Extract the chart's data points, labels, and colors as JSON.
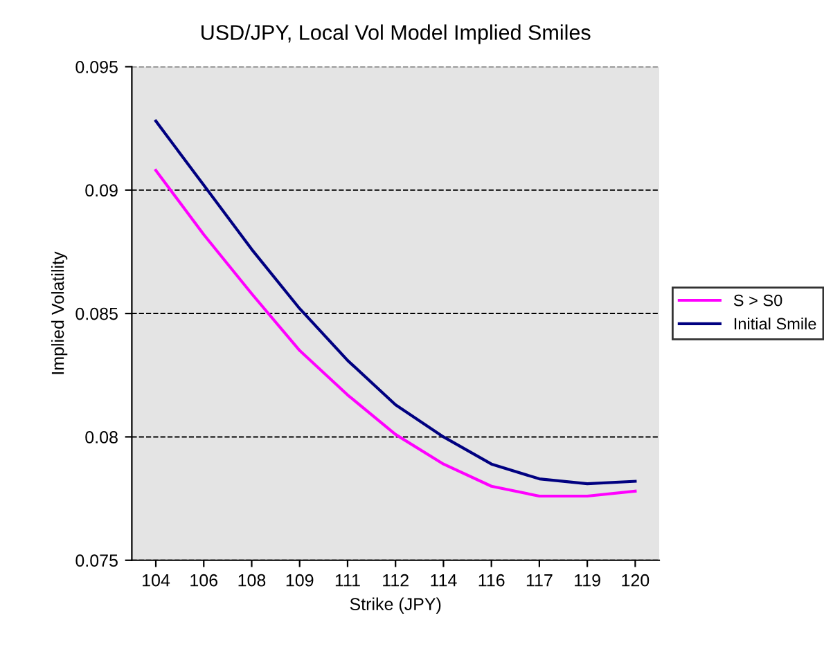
{
  "chart_data": {
    "type": "line",
    "title": "USD/JPY, Local Vol Model Implied Smiles",
    "xlabel": "Strike (JPY)",
    "ylabel": "Implied Volatility",
    "categories": [
      "104",
      "106",
      "108",
      "109",
      "111",
      "112",
      "114",
      "116",
      "117",
      "119",
      "120"
    ],
    "series": [
      {
        "name": "S > S0",
        "color": "#ff00ff",
        "values": [
          0.0908,
          0.0882,
          0.0858,
          0.0835,
          0.0817,
          0.0801,
          0.0789,
          0.078,
          0.0776,
          0.0776,
          0.0778
        ]
      },
      {
        "name": "Initial Smile",
        "color": "#000080",
        "values": [
          0.0928,
          0.0902,
          0.0876,
          0.0852,
          0.0831,
          0.0813,
          0.08,
          0.0789,
          0.0783,
          0.0781,
          0.0782
        ]
      }
    ],
    "ylim": [
      0.075,
      0.095
    ],
    "yticks": [
      0.075,
      0.08,
      0.085,
      0.09,
      0.095
    ],
    "grid": "y",
    "legend": "right",
    "marker": "none",
    "line_style": "solid"
  }
}
